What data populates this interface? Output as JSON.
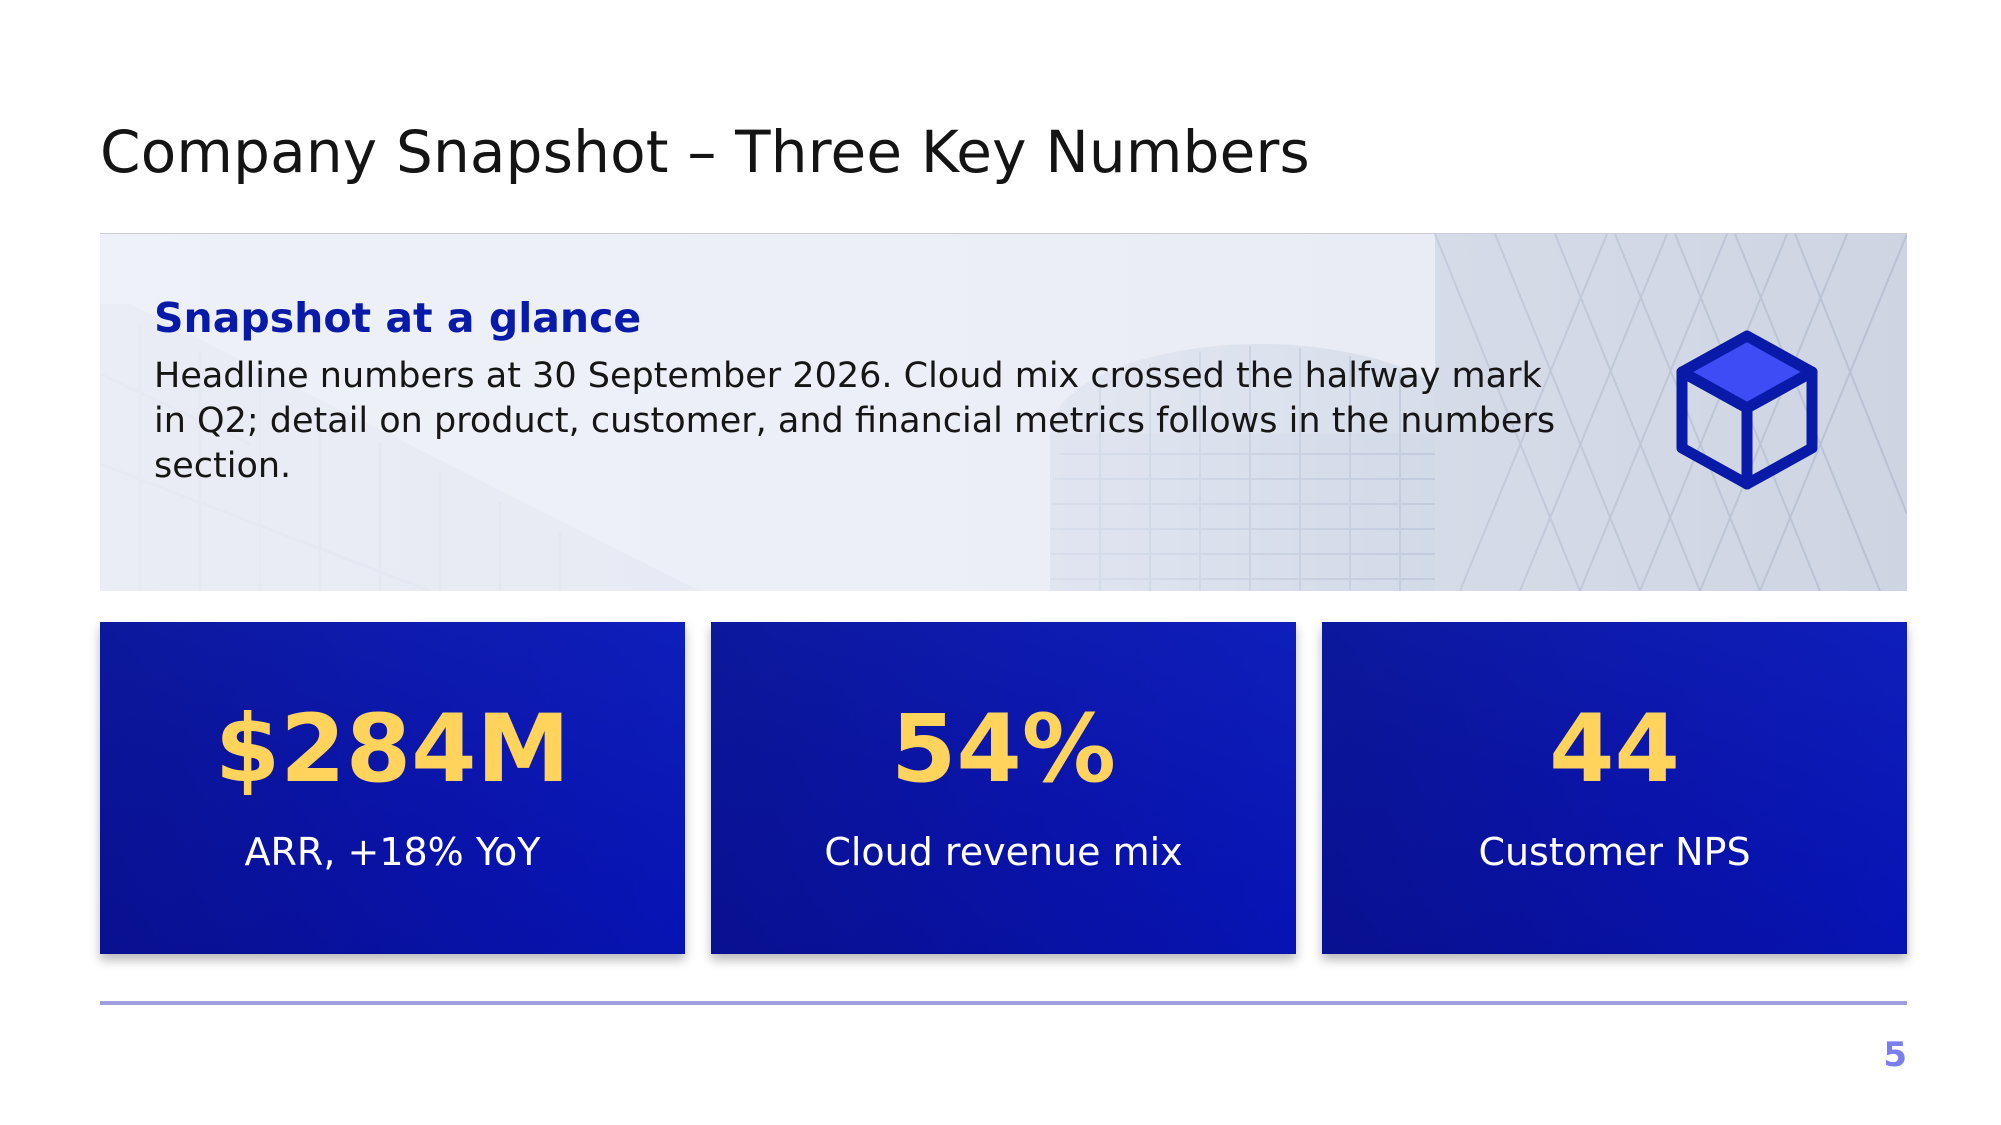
{
  "slide": {
    "title": "Company Snapshot – Three Key Numbers",
    "page_number": "5"
  },
  "banner": {
    "heading": "Snapshot at a glance",
    "body": "Headline numbers at 30 September 2026. Cloud mix crossed the halfway mark in Q2; detail on product, customer, and financial metrics follows in the numbers section.",
    "icon": "cube-icon",
    "image": "office-buildings-photo"
  },
  "metrics": [
    {
      "value": "$284M",
      "label": "ARR, +18% YoY"
    },
    {
      "value": "54%",
      "label": "Cloud revenue mix"
    },
    {
      "value": "44",
      "label": "Customer NPS"
    }
  ],
  "colors": {
    "accent_blue": "#0a1aa8",
    "card_blue": "#0a13a8",
    "value_yellow": "#ffd35c",
    "rule_lavender": "#a09ddc",
    "page_number": "#7b7ef0"
  }
}
